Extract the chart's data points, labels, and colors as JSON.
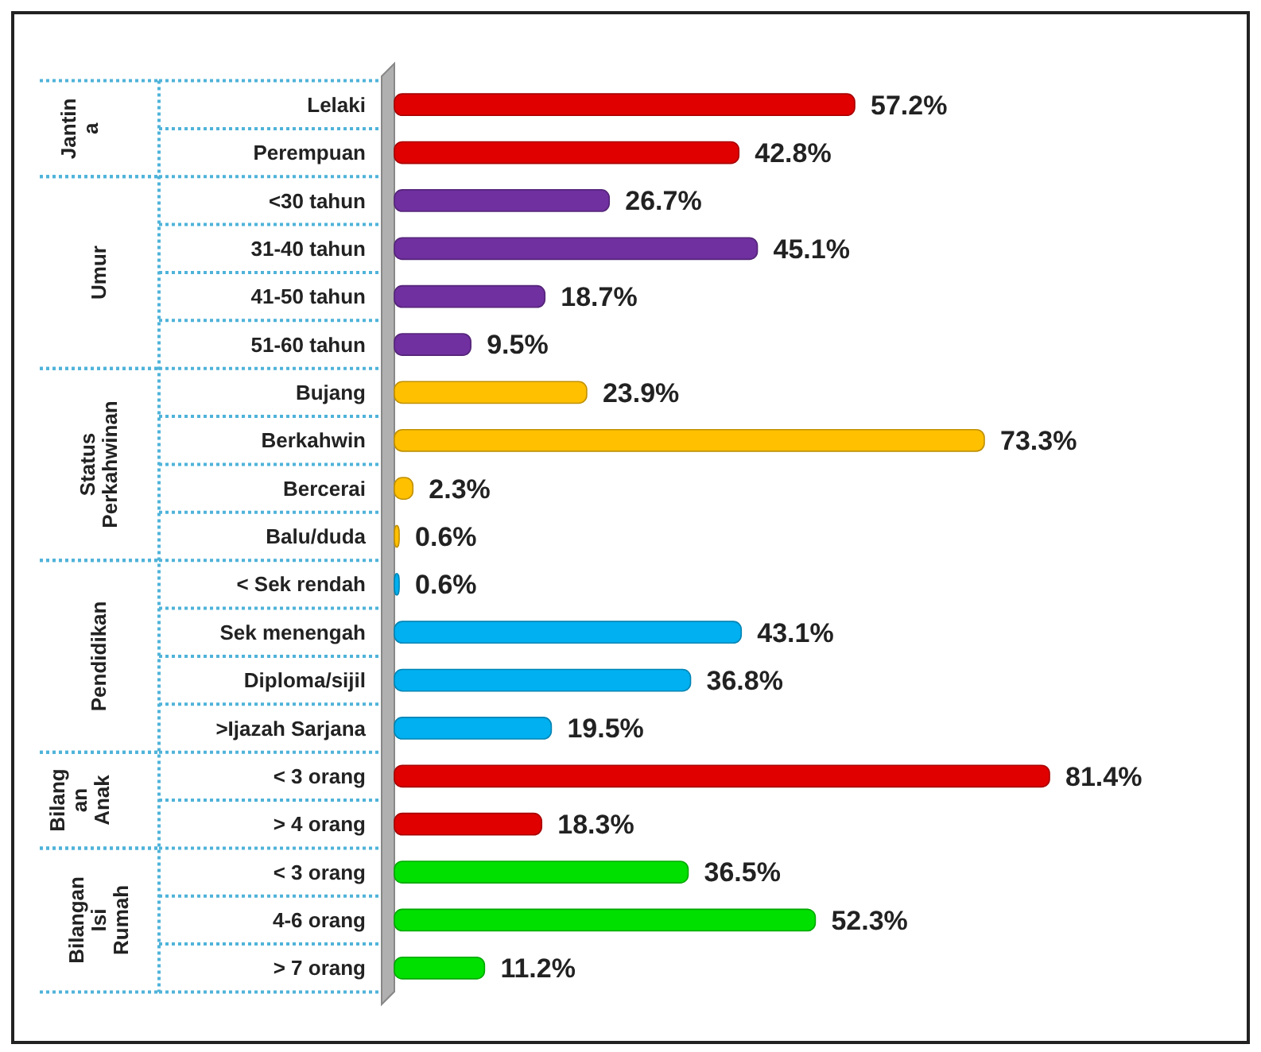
{
  "chart_data": {
    "type": "bar",
    "orientation": "horizontal",
    "categories": [
      "Lelaki",
      "Perempuan",
      "<30 tahun",
      "31-40 tahun",
      "41-50 tahun",
      "51-60 tahun",
      "Bujang",
      "Berkahwin",
      "Bercerai",
      "Balu/duda",
      "< Sek rendah",
      "Sek menengah",
      "Diploma/sijil",
      ">Ijazah Sarjana",
      "< 3 orang",
      "> 4 orang",
      "< 3 orang",
      "4-6 orang",
      "> 7 orang"
    ],
    "values": [
      57.2,
      42.8,
      26.7,
      45.1,
      18.7,
      9.5,
      23.9,
      73.3,
      2.3,
      0.6,
      0.6,
      43.1,
      36.8,
      19.5,
      81.4,
      18.3,
      36.5,
      52.3,
      11.2
    ],
    "value_labels": [
      "57.2%",
      "42.8%",
      "26.7%",
      "45.1%",
      "18.7%",
      "9.5%",
      "23.9%",
      "73.3%",
      "2.3%",
      "0.6%",
      "0.6%",
      "43.1%",
      "36.8%",
      "19.5%",
      "81.4%",
      "18.3%",
      "36.5%",
      "52.3%",
      "11.2%"
    ],
    "colors": [
      "#e00000",
      "#e00000",
      "#7030a0",
      "#7030a0",
      "#7030a0",
      "#7030a0",
      "#ffc000",
      "#ffc000",
      "#ffc000",
      "#ffc000",
      "#00b0f0",
      "#00b0f0",
      "#00b0f0",
      "#00b0f0",
      "#e00000",
      "#e00000",
      "#00e000",
      "#00e000",
      "#00e000"
    ],
    "annotations": [
      "Jantin a",
      "Umur",
      "Status Perkahwinan",
      "Pendidikan",
      "Bilang an Anak",
      "Bilangan Isi Rumah"
    ]
  }
}
